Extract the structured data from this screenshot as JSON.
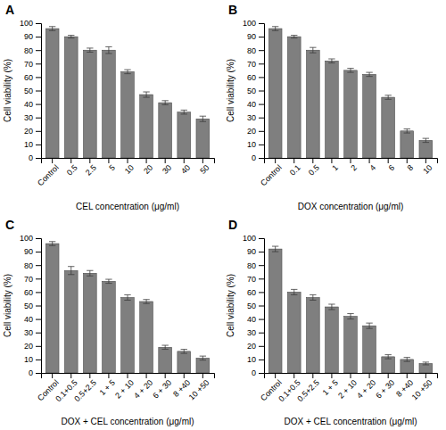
{
  "chart_data": [
    {
      "type": "bar",
      "title": "A",
      "categories": [
        "Control",
        "0.5",
        "2.5",
        "5",
        "10",
        "20",
        "30",
        "40",
        "50"
      ],
      "values": [
        96,
        90,
        80,
        80,
        64,
        47,
        41,
        34,
        29
      ],
      "errors": [
        1.5,
        1.0,
        1.5,
        2.5,
        1.5,
        2.0,
        1.5,
        1.5,
        2.0
      ],
      "xlabel": "CEL concentration (μg/ml)",
      "ylabel": "Cell viability (%)",
      "color": "#7f7f7f",
      "ylim": [
        0,
        100
      ],
      "yticks": [
        0,
        10,
        20,
        30,
        40,
        50,
        60,
        70,
        80,
        90,
        100
      ],
      "grid": false
    },
    {
      "type": "bar",
      "title": "B",
      "categories": [
        "Control",
        "0.1",
        "0.5",
        "1",
        "2",
        "4",
        "6",
        "8",
        "10"
      ],
      "values": [
        96,
        90,
        80,
        72,
        65,
        62,
        45,
        20,
        13
      ],
      "errors": [
        1.5,
        1.0,
        2.0,
        1.5,
        1.5,
        1.5,
        1.5,
        1.5,
        1.5
      ],
      "xlabel": "DOX concentration (μg/ml)",
      "ylabel": "Cell viability (%)",
      "color": "#7f7f7f",
      "ylim": [
        0,
        100
      ],
      "yticks": [
        0,
        10,
        20,
        30,
        40,
        50,
        60,
        70,
        80,
        90,
        100
      ],
      "grid": false
    },
    {
      "type": "bar",
      "title": "C",
      "categories": [
        "Control",
        "0.1+0.5",
        "0.5+2.5",
        "1 + 5",
        "2 + 10",
        "4 + 20",
        "6 + 30",
        "8 +40",
        "10 +50"
      ],
      "values": [
        96,
        76,
        74,
        68,
        56,
        53,
        19,
        16,
        11
      ],
      "errors": [
        1.5,
        3.0,
        2.0,
        1.5,
        2.0,
        1.5,
        1.5,
        1.5,
        1.5
      ],
      "xlabel": "DOX + CEL concentration (μg/ml)",
      "ylabel": "Cell viability (%)",
      "color": "#7f7f7f",
      "ylim": [
        0,
        100
      ],
      "yticks": [
        0,
        10,
        20,
        30,
        40,
        50,
        60,
        70,
        80,
        90,
        100
      ],
      "grid": false
    },
    {
      "type": "bar",
      "title": "D",
      "categories": [
        "Control",
        "0.1+0.5",
        "0.5+2.5",
        "1 + 5",
        "2 + 10",
        "4 + 20",
        "6 + 30",
        "8 +40",
        "10 +50"
      ],
      "values": [
        92,
        60,
        56,
        49,
        42,
        35,
        12,
        10,
        7
      ],
      "errors": [
        2.0,
        2.0,
        2.0,
        2.0,
        2.0,
        2.0,
        1.5,
        1.5,
        1.0
      ],
      "xlabel": "DOX + CEL concentration (μg/ml)",
      "ylabel": "Cell viability (%)",
      "color": "#7f7f7f",
      "ylim": [
        0,
        100
      ],
      "yticks": [
        0,
        10,
        20,
        30,
        40,
        50,
        60,
        70,
        80,
        90,
        100
      ],
      "grid": false
    }
  ]
}
